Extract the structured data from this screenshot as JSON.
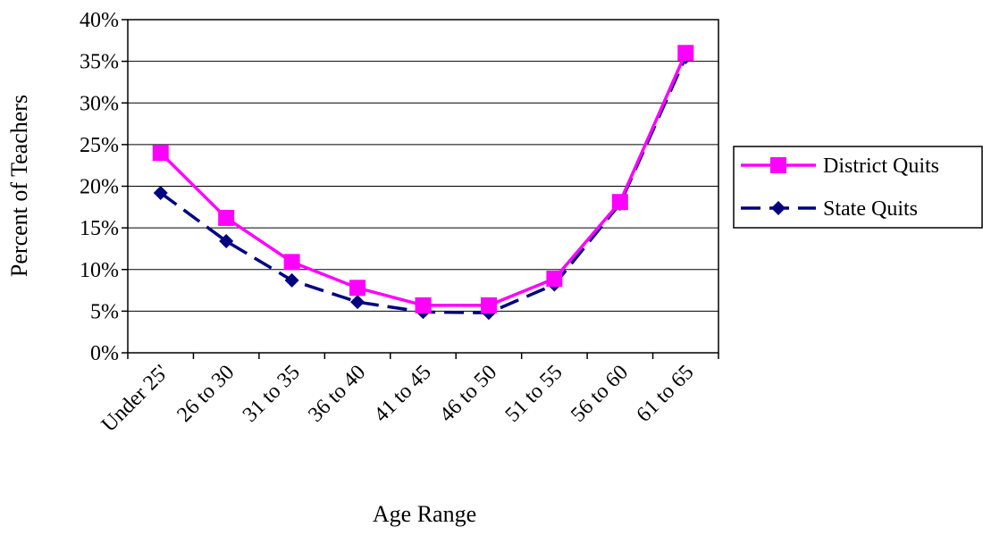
{
  "chart_data": {
    "type": "line",
    "title": "",
    "xlabel": "Age Range",
    "ylabel": "Percent of Teachers",
    "categories": [
      "Under 25'",
      "26 to 30",
      "31 to 35",
      "36 to 40",
      "41 to 45",
      "46 to 50",
      "51 to 55",
      "56 to 60",
      "61 to 65"
    ],
    "y_ticks": [
      "0%",
      "5%",
      "10%",
      "15%",
      "20%",
      "25%",
      "30%",
      "35%",
      "40%"
    ],
    "ylim": [
      0,
      40
    ],
    "grid": true,
    "legend_position": "right",
    "series": [
      {
        "name": "District Quits",
        "values": [
          24,
          16.2,
          10.9,
          7.8,
          5.7,
          5.7,
          8.9,
          18.1,
          36.0
        ],
        "color": "#ff00ff",
        "marker": "square",
        "line_style": "solid"
      },
      {
        "name": "State Quits",
        "values": [
          19.2,
          13.4,
          8.7,
          6.1,
          4.9,
          4.8,
          8.2,
          17.9,
          35.5
        ],
        "color": "#000080",
        "marker": "diamond",
        "line_style": "dashed"
      }
    ]
  }
}
